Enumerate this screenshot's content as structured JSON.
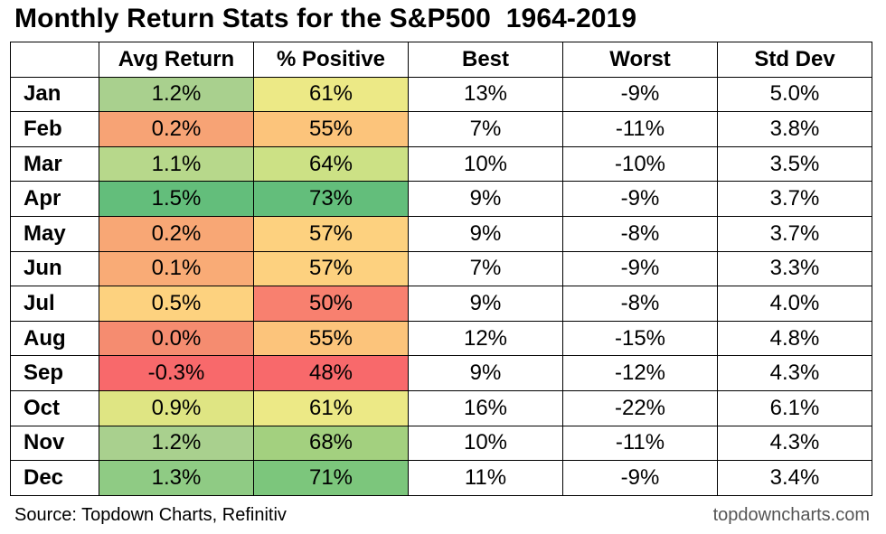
{
  "title": "Monthly Return Stats for the S&P500  1964-2019",
  "footer": {
    "source": "Source: Topdown Charts, Refinitiv",
    "site": "topdowncharts.com"
  },
  "chart_data": {
    "type": "table",
    "columns": [
      "",
      "Avg Return",
      "% Positive",
      "Best",
      "Worst",
      "Std Dev"
    ],
    "rows": [
      {
        "month": "Jan",
        "avg_return": "1.2%",
        "pct_positive": "61%",
        "best": "13%",
        "worst": "-9%",
        "std_dev": "5.0%",
        "avg_color": "#a9d08e",
        "pos_color": "#ece986"
      },
      {
        "month": "Feb",
        "avg_return": "0.2%",
        "pct_positive": "55%",
        "best": "7%",
        "worst": "-11%",
        "std_dev": "3.8%",
        "avg_color": "#f7a375",
        "pos_color": "#fcc47b"
      },
      {
        "month": "Mar",
        "avg_return": "1.1%",
        "pct_positive": "64%",
        "best": "10%",
        "worst": "-10%",
        "std_dev": "3.5%",
        "avg_color": "#b7d88b",
        "pos_color": "#cce185"
      },
      {
        "month": "Apr",
        "avg_return": "1.5%",
        "pct_positive": "73%",
        "best": "9%",
        "worst": "-9%",
        "std_dev": "3.7%",
        "avg_color": "#63be7b",
        "pos_color": "#63be7b"
      },
      {
        "month": "May",
        "avg_return": "0.2%",
        "pct_positive": "57%",
        "best": "9%",
        "worst": "-8%",
        "std_dev": "3.7%",
        "avg_color": "#f8a775",
        "pos_color": "#fdd17f"
      },
      {
        "month": "Jun",
        "avg_return": "0.1%",
        "pct_positive": "57%",
        "best": "7%",
        "worst": "-9%",
        "std_dev": "3.3%",
        "avg_color": "#f9ab76",
        "pos_color": "#fdd17f"
      },
      {
        "month": "Jul",
        "avg_return": "0.5%",
        "pct_positive": "50%",
        "best": "9%",
        "worst": "-8%",
        "std_dev": "4.0%",
        "avg_color": "#fdd27f",
        "pos_color": "#f8806f"
      },
      {
        "month": "Aug",
        "avg_return": "0.0%",
        "pct_positive": "55%",
        "best": "12%",
        "worst": "-15%",
        "std_dev": "4.8%",
        "avg_color": "#f58c70",
        "pos_color": "#fcc47b"
      },
      {
        "month": "Sep",
        "avg_return": "-0.3%",
        "pct_positive": "48%",
        "best": "9%",
        "worst": "-12%",
        "std_dev": "4.3%",
        "avg_color": "#f8696b",
        "pos_color": "#f8696b"
      },
      {
        "month": "Oct",
        "avg_return": "0.9%",
        "pct_positive": "61%",
        "best": "16%",
        "worst": "-22%",
        "std_dev": "6.1%",
        "avg_color": "#dfe583",
        "pos_color": "#ece986"
      },
      {
        "month": "Nov",
        "avg_return": "1.2%",
        "pct_positive": "68%",
        "best": "10%",
        "worst": "-11%",
        "std_dev": "4.3%",
        "avg_color": "#a9d08e",
        "pos_color": "#a3d07f"
      },
      {
        "month": "Dec",
        "avg_return": "1.3%",
        "pct_positive": "71%",
        "best": "11%",
        "worst": "-9%",
        "std_dev": "3.4%",
        "avg_color": "#8fcb84",
        "pos_color": "#7cc67c"
      }
    ]
  }
}
